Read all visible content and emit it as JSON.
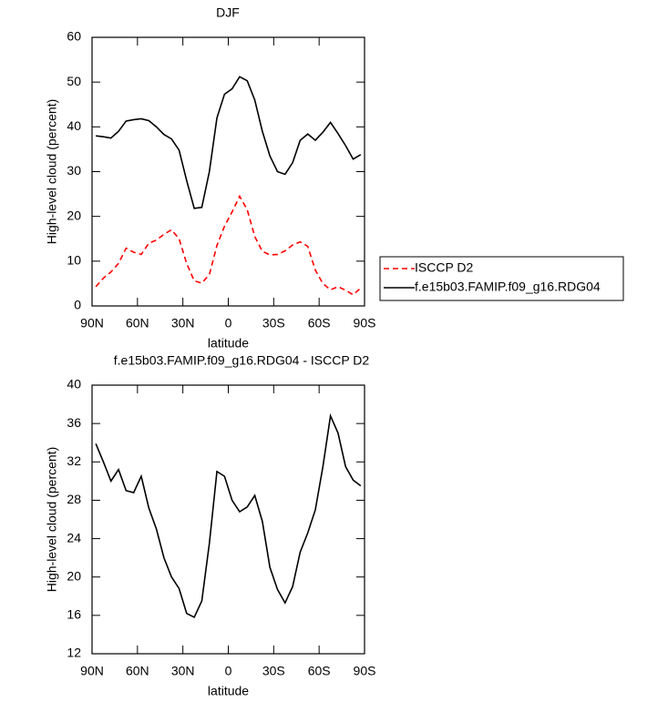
{
  "chart_data": [
    {
      "type": "line",
      "title": "DJF",
      "xlabel": "latitude",
      "ylabel": "High-level cloud (percent)",
      "x": [
        87.5,
        82.5,
        77.5,
        72.5,
        67.5,
        62.5,
        57.5,
        52.5,
        47.5,
        42.5,
        37.5,
        32.5,
        27.5,
        22.5,
        17.5,
        12.5,
        7.5,
        2.5,
        -2.5,
        -7.5,
        -12.5,
        -17.5,
        -22.5,
        -27.5,
        -32.5,
        -37.5,
        -42.5,
        -47.5,
        -52.5,
        -57.5,
        -62.5,
        -67.5,
        -72.5,
        -77.5,
        -82.5,
        -87.5
      ],
      "series": [
        {
          "name": "ISCCP D2",
          "color": "#ff0000",
          "linestyle": "dashed",
          "values": [
            4.3,
            6.2,
            7.6,
            9.5,
            12.9,
            12,
            11.5,
            14,
            14.7,
            16,
            17,
            15,
            9.5,
            5.6,
            5.1,
            7,
            13.5,
            17.8,
            21,
            24.5,
            21.5,
            15.5,
            12.2,
            11.4,
            11.5,
            12.3,
            13.6,
            14.3,
            13.3,
            8,
            5,
            3.6,
            4.3,
            3.5,
            2.5,
            4
          ]
        },
        {
          "name": "f.e15b03.FAMIP.f09_g16.RDG04",
          "color": "#000000",
          "linestyle": "solid",
          "values": [
            38,
            37.8,
            37.5,
            39,
            41.3,
            41.6,
            41.8,
            41.4,
            40,
            38.3,
            37.3,
            34.8,
            28,
            21.8,
            22,
            30,
            42,
            47.3,
            48.5,
            51.2,
            50.3,
            46,
            39,
            33.5,
            30,
            29.4,
            32,
            37,
            38.4,
            37,
            38.8,
            41,
            38.5,
            35.8,
            32.8,
            33.8
          ]
        }
      ],
      "xlim": [
        90,
        -90
      ],
      "xticks": [
        {
          "value": 90,
          "label": "90N"
        },
        {
          "value": 60,
          "label": "60N"
        },
        {
          "value": 30,
          "label": "30N"
        },
        0,
        {
          "value": -30,
          "label": "30S"
        },
        {
          "value": -60,
          "label": "60S"
        },
        {
          "value": -90,
          "label": "90S"
        }
      ],
      "ylim": [
        0,
        60
      ],
      "yticks": [
        0,
        10,
        20,
        30,
        40,
        50,
        60
      ],
      "legend": "right"
    },
    {
      "type": "line",
      "title": "f.e15b03.FAMIP.f09_g16.RDG04 - ISCCP D2",
      "xlabel": "latitude",
      "ylabel": "High-level cloud (percent)",
      "x": [
        87.5,
        82.5,
        77.5,
        72.5,
        67.5,
        62.5,
        57.5,
        52.5,
        47.5,
        42.5,
        37.5,
        32.5,
        27.5,
        22.5,
        17.5,
        12.5,
        7.5,
        2.5,
        -2.5,
        -7.5,
        -12.5,
        -17.5,
        -22.5,
        -27.5,
        -32.5,
        -37.5,
        -42.5,
        -47.5,
        -52.5,
        -57.5,
        -62.5,
        -67.5,
        -72.5,
        -77.5,
        -82.5,
        -87.5
      ],
      "values": [
        33.9,
        32,
        30,
        31.2,
        29,
        28.8,
        30.5,
        27.2,
        25,
        22,
        20,
        18.8,
        16.2,
        15.8,
        17.5,
        23.5,
        31,
        30.5,
        28,
        26.8,
        27.3,
        28.5,
        25.8,
        21,
        18.7,
        17.3,
        19,
        22.6,
        24.6,
        27,
        31.5,
        36.8,
        35,
        31.5,
        30.1,
        29.5
      ],
      "color": "#000000",
      "xlim": [
        90,
        -90
      ],
      "xticks": [
        {
          "value": 90,
          "label": "90N"
        },
        {
          "value": 60,
          "label": "60N"
        },
        {
          "value": 30,
          "label": "30N"
        },
        0,
        {
          "value": -30,
          "label": "30S"
        },
        {
          "value": -60,
          "label": "60S"
        },
        {
          "value": -90,
          "label": "90S"
        }
      ],
      "ylim": [
        12,
        40
      ],
      "yticks": [
        12,
        16,
        20,
        24,
        28,
        32,
        36,
        40
      ]
    }
  ]
}
